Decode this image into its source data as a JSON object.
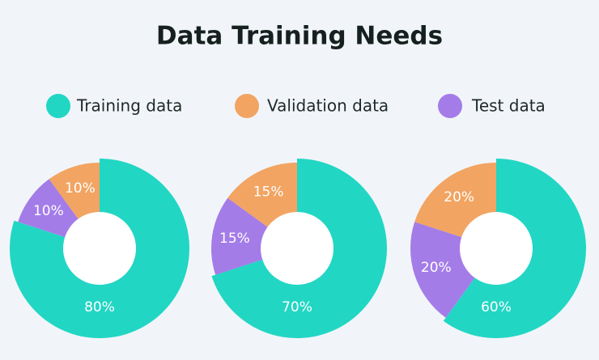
{
  "title": "Data Training Needs",
  "chart_data": [
    {
      "type": "pie",
      "categories": [
        "Training data",
        "Validation data",
        "Test data"
      ],
      "values": [
        80,
        10,
        10
      ],
      "value_labels": [
        "80%",
        "10%",
        "10%"
      ],
      "colors": [
        "#22d6c4",
        "#f2a462",
        "#a47ce8"
      ]
    },
    {
      "type": "pie",
      "categories": [
        "Training data",
        "Validation data",
        "Test data"
      ],
      "values": [
        70,
        15,
        15
      ],
      "value_labels": [
        "70%",
        "15%",
        "15%"
      ],
      "colors": [
        "#22d6c4",
        "#f2a462",
        "#a47ce8"
      ]
    },
    {
      "type": "pie",
      "categories": [
        "Training data",
        "Validation data",
        "Test data"
      ],
      "values": [
        60,
        20,
        20
      ],
      "value_labels": [
        "60%",
        "20%",
        "20%"
      ],
      "colors": [
        "#22d6c4",
        "#f2a462",
        "#a47ce8"
      ]
    }
  ]
}
